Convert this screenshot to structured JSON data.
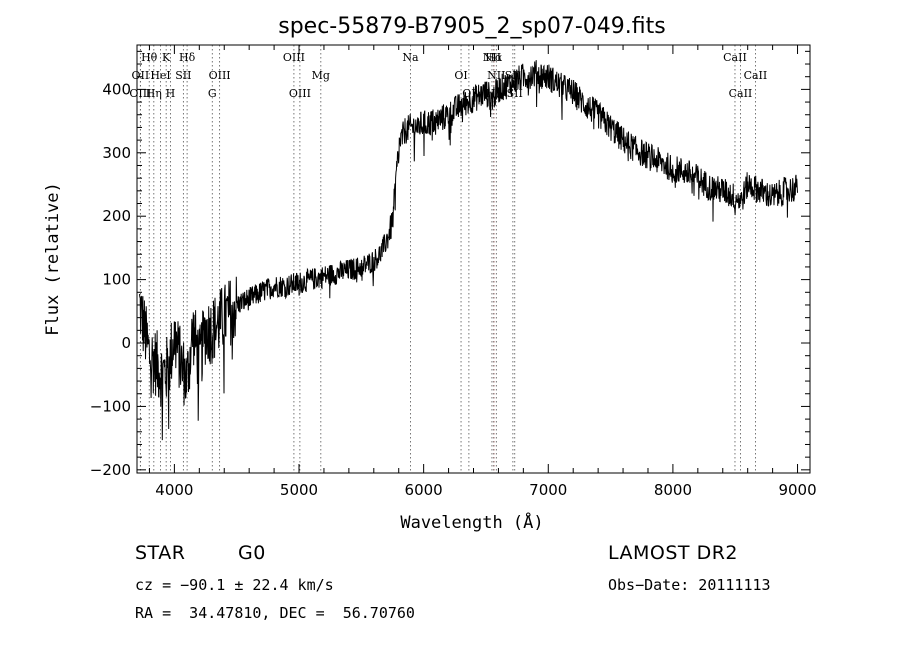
{
  "chart_data": {
    "type": "line",
    "title": "spec-55879-B7905_2_sp07-049.fits",
    "xlabel": "Wavelength (Å)",
    "ylabel": "Flux (relative)",
    "xlim": [
      3700,
      9100
    ],
    "ylim": [
      -205,
      470
    ],
    "xticks": [
      4000,
      5000,
      6000,
      7000,
      8000,
      9000
    ],
    "yticks": [
      -200,
      -100,
      0,
      100,
      200,
      300,
      400
    ],
    "grid": false,
    "series": [
      {
        "x": [
          3720,
          3760,
          3800,
          3850,
          3900,
          3950,
          4000,
          4050,
          4100,
          4150,
          4200,
          4250,
          4300,
          4350,
          4400,
          4450,
          4500,
          4600,
          4700,
          4800,
          4900,
          5000,
          5100,
          5200,
          5300,
          5400,
          5500,
          5600,
          5650,
          5700,
          5750,
          5800,
          5850,
          5900,
          6000,
          6100,
          6200,
          6300,
          6400,
          6500,
          6550,
          6600,
          6700,
          6800,
          6900,
          7000,
          7100,
          7200,
          7300,
          7400,
          7500,
          7600,
          7700,
          7800,
          7900,
          8000,
          8100,
          8200,
          8300,
          8400,
          8500,
          8550,
          8600,
          8700,
          8800,
          8900,
          9000
        ],
        "y": [
          60,
          20,
          -20,
          -30,
          -50,
          -40,
          10,
          -30,
          -60,
          20,
          -30,
          20,
          20,
          30,
          40,
          50,
          60,
          70,
          80,
          90,
          90,
          95,
          100,
          105,
          110,
          115,
          120,
          130,
          140,
          160,
          190,
          310,
          335,
          340,
          345,
          350,
          360,
          375,
          385,
          395,
          385,
          400,
          410,
          420,
          425,
          420,
          405,
          395,
          375,
          360,
          340,
          320,
          305,
          295,
          285,
          275,
          270,
          260,
          245,
          240,
          230,
          225,
          250,
          240,
          230,
          240,
          245
        ]
      }
    ],
    "lines": [
      {
        "label": "Hθ",
        "x": 3798,
        "row": 0
      },
      {
        "label": "K",
        "x": 3934,
        "row": 0
      },
      {
        "label": "Hδ",
        "x": 4102,
        "row": 0
      },
      {
        "label": "OII",
        "x": 3727,
        "row": 1
      },
      {
        "label": "HeI",
        "x": 3889,
        "row": 1
      },
      {
        "label": "SII",
        "x": 4072,
        "row": 1
      },
      {
        "label": "OIII",
        "x": 4363,
        "row": 1
      },
      {
        "label": "OIII",
        "x": 3727,
        "row": 2
      },
      {
        "label": "Hη",
        "x": 3835,
        "row": 2
      },
      {
        "label": "H",
        "x": 3968,
        "row": 2
      },
      {
        "label": "G",
        "x": 4304,
        "row": 2
      },
      {
        "label": "OIII",
        "x": 4959,
        "row": 0
      },
      {
        "label": "Mg",
        "x": 5175,
        "row": 1
      },
      {
        "label": "OIII",
        "x": 5007,
        "row": 2
      },
      {
        "label": "Na",
        "x": 5894,
        "row": 0
      },
      {
        "label": "OI",
        "x": 6300,
        "row": 1
      },
      {
        "label": "OI",
        "x": 6363,
        "row": 2
      },
      {
        "label": "NII",
        "x": 6548,
        "row": 0
      },
      {
        "label": "Hα",
        "x": 6563,
        "row": 0,
        "red": true
      },
      {
        "label": "NII",
        "x": 6583,
        "row": 1
      },
      {
        "label": "Hβ",
        "x": 6563,
        "row": 2
      },
      {
        "label": "SII",
        "x": 6716,
        "row": 1
      },
      {
        "label": "SII",
        "x": 6731,
        "row": 2
      },
      {
        "label": "CaII",
        "x": 8498,
        "row": 0
      },
      {
        "label": "CaII",
        "x": 8662,
        "row": 1
      },
      {
        "label": "CaII",
        "x": 8542,
        "row": 2
      }
    ]
  },
  "info": {
    "object_class": "STAR",
    "subclass": "G0",
    "survey": "LAMOST DR2",
    "cz": "cz = −90.1 ± 22.4 km/s",
    "obs_date": "Obs−Date: 20111113",
    "coords": "RA =  34.47810, DEC =  56.70760"
  }
}
